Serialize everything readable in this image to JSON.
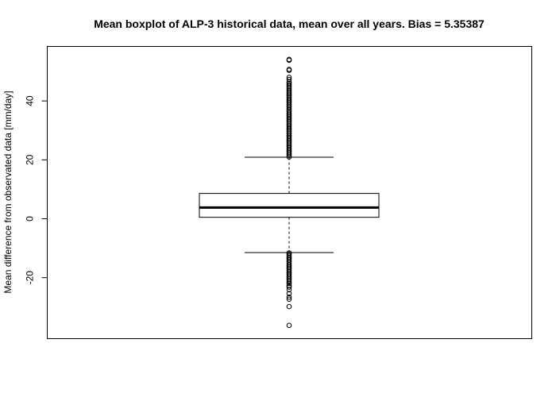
{
  "chart_data": {
    "type": "boxplot",
    "title": "Mean boxplot of ALP-3 historical data, mean over all years. Bias = 5.35387",
    "xlabel": "",
    "ylabel": "Mean difference from observated data [mm/day]",
    "ylim": [
      -40.7,
      58.5
    ],
    "yticks": [
      -20,
      0,
      20,
      40
    ],
    "ytick_labels": [
      "-20",
      "0",
      "20",
      "40"
    ],
    "grid": false,
    "box": {
      "lower_whisker": -11.5,
      "q1": 0.5,
      "median": 3.8,
      "q3": 8.6,
      "upper_whisker": 20.9
    },
    "outliers_high": [
      21.0,
      21.5,
      22.0,
      22.5,
      23.0,
      23.5,
      24.0,
      24.5,
      25.0,
      25.5,
      26.0,
      26.5,
      27.0,
      27.5,
      28.0,
      28.5,
      29.0,
      29.5,
      30.0,
      30.5,
      31.0,
      31.5,
      32.0,
      32.5,
      33.0,
      33.5,
      34.0,
      34.5,
      35.0,
      35.5,
      36.0,
      36.5,
      37.0,
      37.5,
      38.0,
      38.5,
      39.0,
      39.5,
      40.0,
      40.5,
      41.0,
      41.5,
      42.0,
      42.5,
      43.0,
      43.5,
      44.0,
      44.5,
      45.0,
      45.5,
      46.0,
      46.5,
      47.3,
      48.0,
      50.4,
      50.7,
      53.8,
      54.1
    ],
    "outliers_low": [
      -11.6,
      -12.0,
      -12.5,
      -13.0,
      -13.5,
      -14.0,
      -14.5,
      -15.0,
      -15.5,
      -16.0,
      -16.5,
      -17.0,
      -17.5,
      -18.0,
      -18.5,
      -19.0,
      -19.5,
      -20.0,
      -20.5,
      -21.0,
      -21.5,
      -22.0,
      -22.7,
      -23.2,
      -24.1,
      -25.4,
      -26.6,
      -27.3,
      -29.8,
      -36.2
    ]
  }
}
